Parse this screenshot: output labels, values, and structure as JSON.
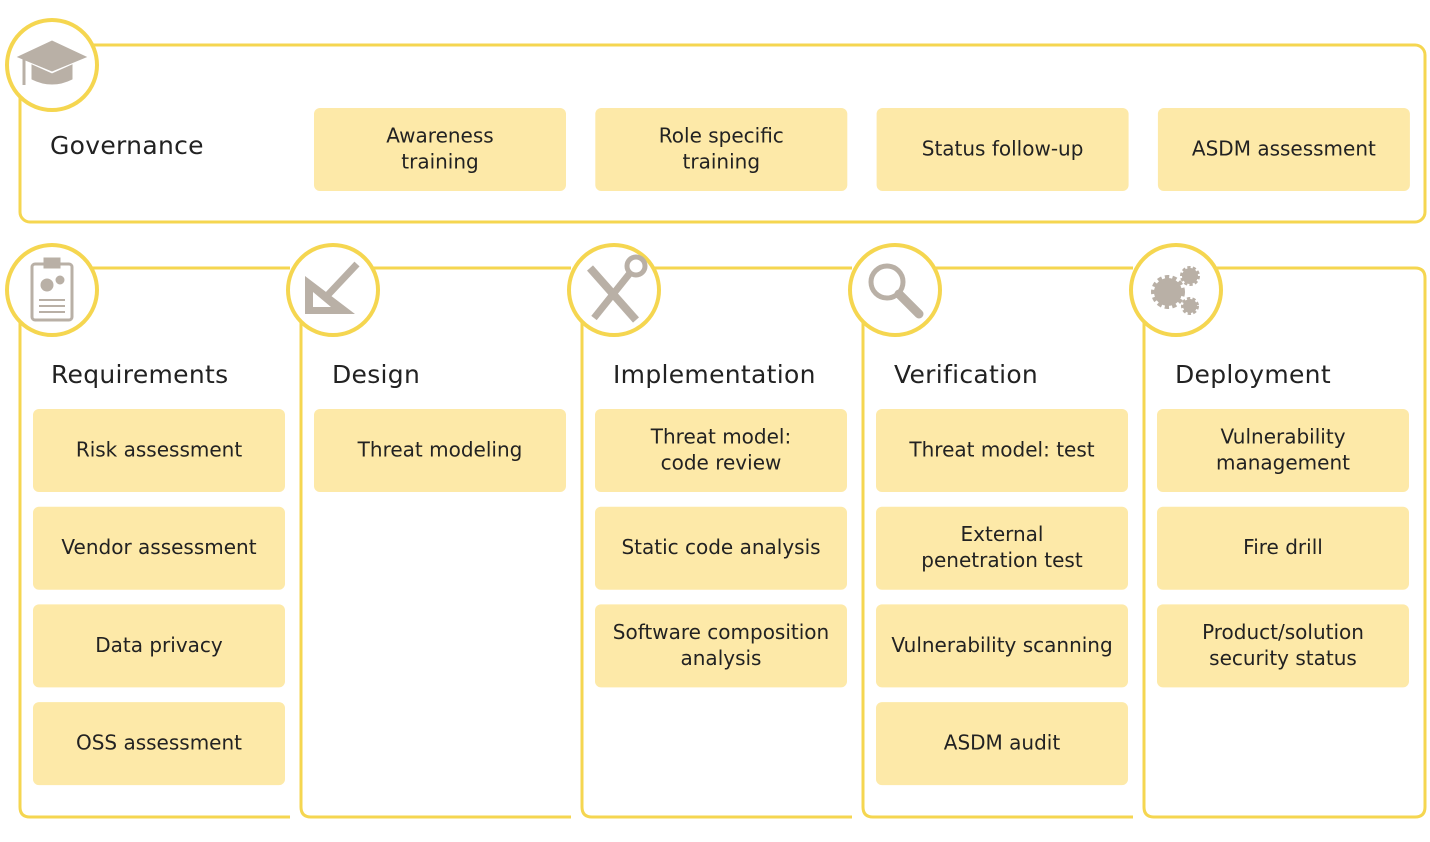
{
  "governance": {
    "title": "Governance",
    "items": [
      {
        "lines": [
          "Awareness",
          "training"
        ]
      },
      {
        "lines": [
          "Role specific",
          "training"
        ]
      },
      {
        "lines": [
          "Status follow-up"
        ]
      },
      {
        "lines": [
          "ASDM assessment"
        ]
      }
    ]
  },
  "columns": [
    {
      "title": "Requirements",
      "items": [
        {
          "lines": [
            "Risk assessment"
          ]
        },
        {
          "lines": [
            "Vendor assessment"
          ]
        },
        {
          "lines": [
            "Data privacy"
          ]
        },
        {
          "lines": [
            "OSS assessment"
          ]
        }
      ]
    },
    {
      "title": "Design",
      "items": [
        {
          "lines": [
            "Threat modeling"
          ]
        }
      ]
    },
    {
      "title": "Implementation",
      "items": [
        {
          "lines": [
            "Threat model:",
            "code review"
          ]
        },
        {
          "lines": [
            "Static code analysis"
          ]
        },
        {
          "lines": [
            "Software composition",
            "analysis"
          ]
        }
      ]
    },
    {
      "title": "Verification",
      "items": [
        {
          "lines": [
            "Threat model: test"
          ]
        },
        {
          "lines": [
            "External",
            "penetration test"
          ]
        },
        {
          "lines": [
            "Vulnerability scanning"
          ]
        },
        {
          "lines": [
            "ASDM audit"
          ]
        }
      ]
    },
    {
      "title": "Deployment",
      "items": [
        {
          "lines": [
            "Vulnerability",
            "management"
          ]
        },
        {
          "lines": [
            "Fire drill"
          ]
        },
        {
          "lines": [
            "Product/solution",
            "security status"
          ]
        }
      ]
    }
  ]
}
